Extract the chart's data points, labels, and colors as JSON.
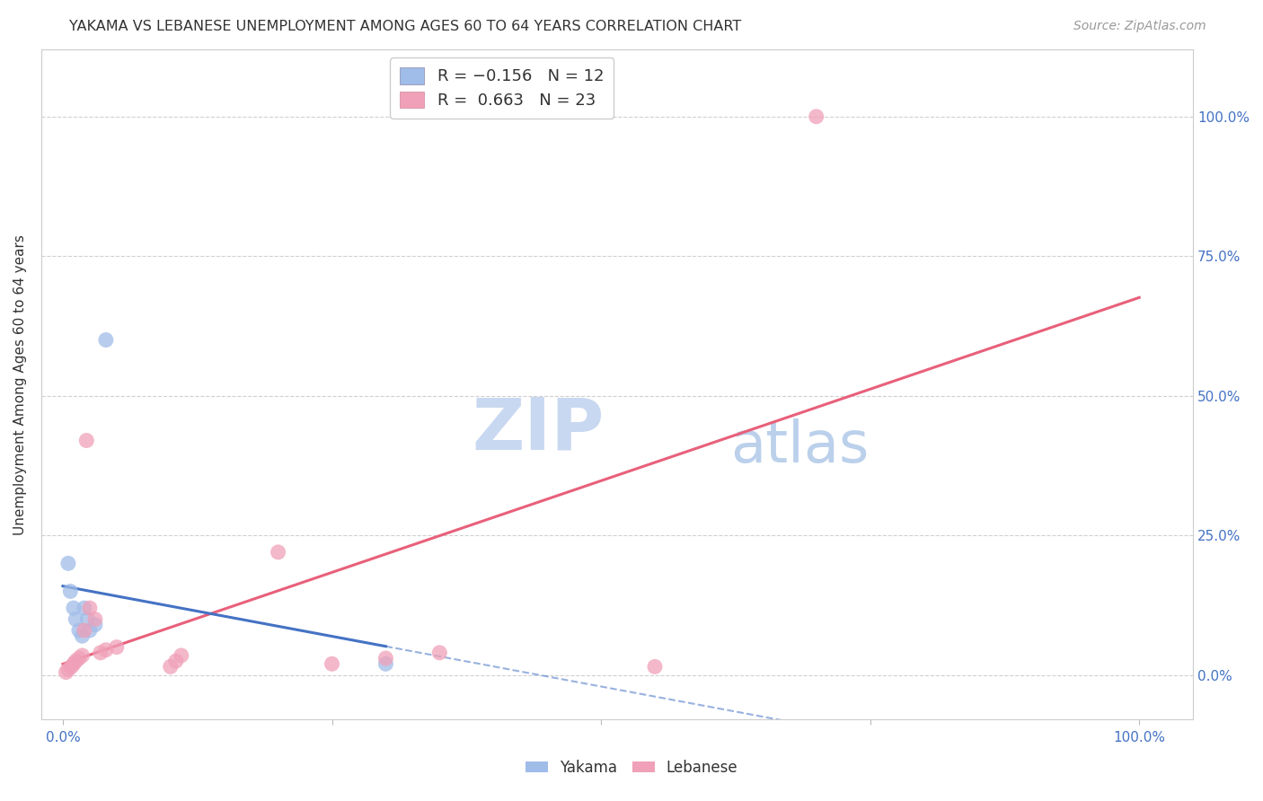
{
  "title": "YAKAMA VS LEBANESE UNEMPLOYMENT AMONG AGES 60 TO 64 YEARS CORRELATION CHART",
  "source": "Source: ZipAtlas.com",
  "ylabel": "Unemployment Among Ages 60 to 64 years",
  "yakama_x": [
    0.5,
    0.7,
    1.0,
    1.2,
    1.5,
    1.8,
    2.0,
    2.3,
    2.5,
    3.0,
    4.0,
    30.0
  ],
  "yakama_y": [
    20.0,
    15.0,
    12.0,
    10.0,
    8.0,
    7.0,
    12.0,
    10.0,
    8.0,
    9.0,
    60.0,
    2.0
  ],
  "lebanese_x": [
    0.3,
    0.5,
    0.8,
    1.0,
    1.2,
    1.5,
    1.8,
    2.0,
    2.2,
    2.5,
    3.0,
    3.5,
    4.0,
    5.0,
    10.0,
    10.5,
    11.0,
    20.0,
    25.0,
    30.0,
    35.0,
    55.0,
    70.0
  ],
  "lebanese_y": [
    0.5,
    1.0,
    1.5,
    2.0,
    2.5,
    3.0,
    3.5,
    8.0,
    42.0,
    12.0,
    10.0,
    4.0,
    4.5,
    5.0,
    1.5,
    2.5,
    3.5,
    22.0,
    2.0,
    3.0,
    4.0,
    1.5,
    100.0
  ],
  "yakama_color": "#a0bce8",
  "lebanese_color": "#f0a0b8",
  "trend_yakama_color": "#4472c4",
  "trend_lebanese_color": "#e8607a",
  "background_color": "#ffffff",
  "grid_color": "#d0d0d0",
  "title_color": "#333333",
  "source_color": "#999999",
  "axis_label_color": "#333333",
  "tick_label_color": "#4472c4",
  "legend_label_color": "#333333",
  "watermark_zip_color": "#c8d8f0",
  "watermark_atlas_color": "#b0c8e8",
  "ytick_values": [
    0,
    25,
    50,
    75,
    100
  ],
  "ytick_labels": [
    "0.0%",
    "25.0%",
    "50.0%",
    "75.0%",
    "100.0%"
  ],
  "xlim": [
    -2,
    105
  ],
  "ylim": [
    -8,
    112
  ]
}
